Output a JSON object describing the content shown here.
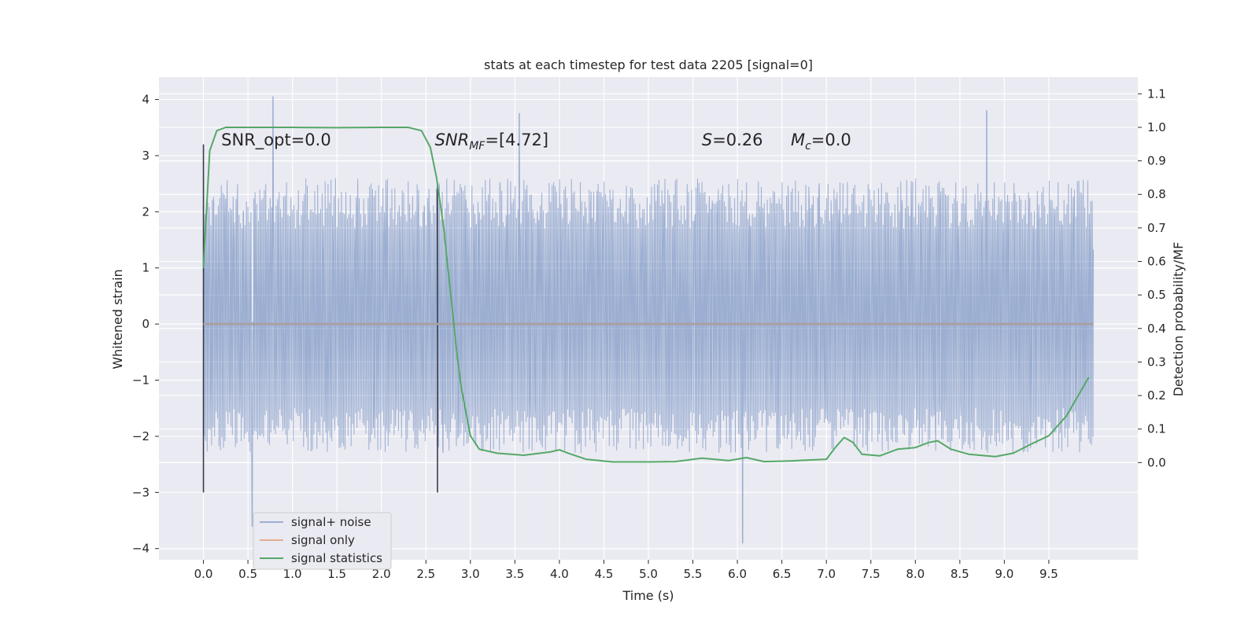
{
  "chart_data": {
    "type": "line",
    "title": "stats at each timestep for test data 2205 [signal=0]",
    "xlabel": "Time (s)",
    "ylabel": "Whitened strain",
    "ylabel_right": "Detection probability/MF",
    "xlim": [
      -0.5,
      10.5
    ],
    "ylim": [
      -4.2,
      4.4
    ],
    "ylim_right": [
      -0.29,
      1.15
    ],
    "x_ticks": [
      "0.0",
      "0.5",
      "1.0",
      "1.5",
      "2.0",
      "2.5",
      "3.0",
      "3.5",
      "4.0",
      "4.5",
      "5.0",
      "5.5",
      "6.0",
      "6.5",
      "7.0",
      "7.5",
      "8.0",
      "8.5",
      "9.0",
      "9.5"
    ],
    "y_ticks": [
      "4",
      "3",
      "2",
      "1",
      "0",
      "−1",
      "−2",
      "−3",
      "−4"
    ],
    "y_ticks_right": [
      "1.1",
      "1.0",
      "0.9",
      "0.8",
      "0.7",
      "0.6",
      "0.5",
      "0.4",
      "0.3",
      "0.2",
      "0.1",
      "0.0"
    ],
    "grid": true,
    "legend_position": "lower-left",
    "colors": {
      "noise": "#4c72b0",
      "signal": "#dd8452",
      "stats": "#55a868",
      "background": "#eaeaf2",
      "marker": "#3a3a4a"
    },
    "series": [
      {
        "name": "signal+ noise",
        "axis": "left",
        "description": "dense whitened strain noise, roughly within -2.3..2.6 with spikes to about 4.05 and -3.9",
        "x_range": [
          0.0,
          10.0
        ],
        "typical_range": [
          -2.3,
          2.6
        ],
        "peaks": [
          [
            0.78,
            4.05
          ],
          [
            3.55,
            3.75
          ],
          [
            6.06,
            -3.9
          ],
          [
            0.55,
            -3.6
          ],
          [
            8.8,
            3.8
          ]
        ]
      },
      {
        "name": "signal only",
        "axis": "left",
        "x": [
          0.0,
          10.0
        ],
        "y": [
          0.0,
          0.0
        ]
      },
      {
        "name": "signal statistics",
        "axis": "right",
        "x": [
          0.0,
          0.07,
          0.15,
          0.25,
          0.5,
          1.0,
          1.5,
          2.0,
          2.3,
          2.45,
          2.55,
          2.62,
          2.7,
          2.78,
          2.85,
          2.9,
          2.95,
          3.0,
          3.1,
          3.3,
          3.6,
          3.9,
          4.0,
          4.1,
          4.3,
          4.6,
          5.0,
          5.3,
          5.6,
          5.9,
          6.1,
          6.3,
          6.6,
          7.0,
          7.1,
          7.2,
          7.3,
          7.4,
          7.6,
          7.8,
          8.0,
          8.15,
          8.25,
          8.4,
          8.6,
          8.9,
          9.1,
          9.3,
          9.5,
          9.7,
          9.95
        ],
        "y": [
          0.58,
          0.93,
          0.99,
          1.0,
          1.0,
          1.0,
          0.999,
          1.0,
          1.0,
          0.99,
          0.94,
          0.85,
          0.7,
          0.5,
          0.32,
          0.22,
          0.15,
          0.08,
          0.04,
          0.028,
          0.022,
          0.032,
          0.038,
          0.028,
          0.01,
          0.002,
          0.002,
          0.003,
          0.013,
          0.006,
          0.015,
          0.003,
          0.005,
          0.01,
          0.045,
          0.075,
          0.06,
          0.025,
          0.02,
          0.04,
          0.045,
          0.06,
          0.065,
          0.04,
          0.025,
          0.018,
          0.028,
          0.055,
          0.08,
          0.14,
          0.255
        ]
      }
    ],
    "vertical_markers": [
      {
        "x": 0.0,
        "y_range": [
          -3.0,
          3.2
        ]
      },
      {
        "x": 2.63,
        "y_range": [
          -3.0,
          2.5
        ]
      }
    ],
    "annotations": [
      {
        "text": "SNR_opt=0.0",
        "italic": false
      },
      {
        "text": "SNR",
        "italic": true,
        "sub": "MF",
        "suffix": "=[4.72]"
      },
      {
        "text": "S",
        "italic": true,
        "suffix": "=0.26"
      },
      {
        "text": "M",
        "italic": true,
        "sub": "c",
        "suffix": "=0.0"
      }
    ]
  }
}
